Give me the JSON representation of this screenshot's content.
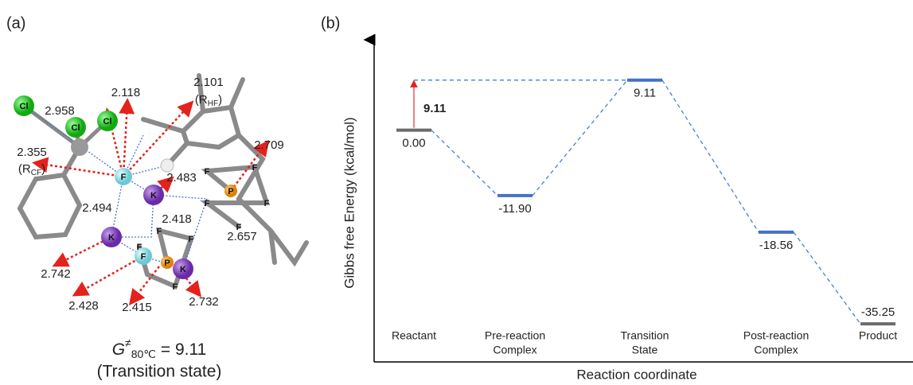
{
  "panel_labels": [
    "(a)",
    "(b)"
  ],
  "molecule": {
    "atoms": [
      "Cl",
      "Cl",
      "Cl",
      "F",
      "K",
      "K",
      "F",
      "K",
      "P",
      "P",
      "F",
      "F",
      "F",
      "F",
      "F",
      "F",
      "F",
      "F",
      "F"
    ],
    "distances": [
      "2.958",
      "2.118",
      "2.101",
      "2.355",
      "2.483",
      "2.709",
      "2.494",
      "2.418",
      "2.657",
      "2.742",
      "2.428",
      "2.415",
      "2.732"
    ],
    "r_hf": [
      "(R",
      "HF",
      ")"
    ],
    "r_cf": [
      "(R",
      "CF",
      ")"
    ],
    "caption": {
      "symbol": "G",
      "superscript": "≠",
      "subscript": "80℃",
      "rest": " = 9.11",
      "line2": "(Transition state)"
    }
  },
  "chart_data": {
    "type": "energy-profile",
    "ylabel": "Gibbs free Energy (kcal/mol)",
    "xlabel": "Reaction coordinate",
    "categories": [
      [
        "Reactant"
      ],
      [
        "Pre-reaction",
        "Complex"
      ],
      [
        "Transition",
        "State"
      ],
      [
        "Post-reaction",
        "Complex"
      ],
      [
        "Product"
      ]
    ],
    "values": [
      0,
      -11.9,
      9.11,
      -18.56,
      -35.25
    ],
    "value_labels": [
      "0.00",
      "-11.90",
      "9.11",
      "-18.56",
      "-35.25"
    ],
    "colors": [
      "#6b6b6b",
      "#4472c4",
      "#4472c4",
      "#4472c4",
      "#6b6b6b"
    ],
    "connector_color": "#4a7fd4",
    "barrier": 9.11,
    "barrier_color": "#e0302a",
    "ylim": [
      -40,
      15
    ]
  }
}
